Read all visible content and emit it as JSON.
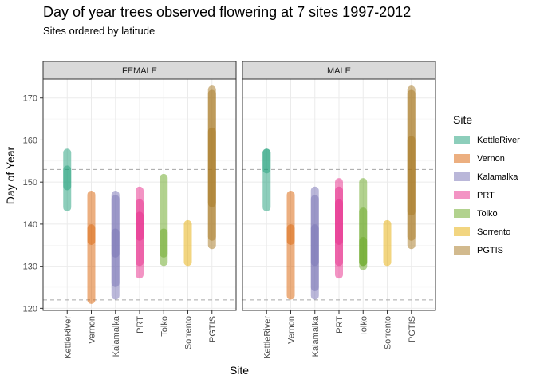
{
  "chart_data": {
    "type": "line",
    "title": "Day of year trees observed flowering at 7 sites 1997-2012",
    "subtitle": "Sites ordered by latitude",
    "xlabel": "Site",
    "ylabel": "Day of Year",
    "ylim": [
      119.5,
      174.5
    ],
    "yticks": [
      120,
      130,
      140,
      150,
      160,
      170
    ],
    "grid": true,
    "hlines": [
      122,
      153
    ],
    "facets": [
      "FEMALE",
      "MALE"
    ],
    "categories": [
      "KettleRiver",
      "Vernon",
      "Kalamalka",
      "PRT",
      "Tolko",
      "Sorrento",
      "PGTIS"
    ],
    "legend": {
      "title": "Site",
      "position": "right",
      "items": [
        {
          "label": "KettleRiver",
          "color": "#1B9E77"
        },
        {
          "label": "Vernon",
          "color": "#D95F02"
        },
        {
          "label": "Kalamalka",
          "color": "#7570B3"
        },
        {
          "label": "PRT",
          "color": "#E7298A"
        },
        {
          "label": "Tolko",
          "color": "#66A61E"
        },
        {
          "label": "Sorrento",
          "color": "#E6AB02"
        },
        {
          "label": "PGTIS",
          "color": "#A6761D"
        }
      ]
    },
    "series": [
      {
        "facet": "FEMALE",
        "site": "KettleRiver",
        "min": 144,
        "max": 157,
        "dense": [
          [
            149,
            153
          ]
        ]
      },
      {
        "facet": "FEMALE",
        "site": "Vernon",
        "min": 122,
        "max": 147,
        "dense": [
          [
            136,
            139
          ]
        ]
      },
      {
        "facet": "FEMALE",
        "site": "Kalamalka",
        "min": 123,
        "max": 147,
        "dense": [
          [
            126,
            146
          ],
          [
            133,
            138
          ]
        ]
      },
      {
        "facet": "FEMALE",
        "site": "PRT",
        "min": 128,
        "max": 148,
        "dense": [
          [
            131,
            145
          ],
          [
            137,
            142
          ]
        ]
      },
      {
        "facet": "FEMALE",
        "site": "Tolko",
        "min": 131,
        "max": 151,
        "dense": [
          [
            133,
            138
          ]
        ]
      },
      {
        "facet": "FEMALE",
        "site": "Sorrento",
        "min": 131,
        "max": 140,
        "dense": []
      },
      {
        "facet": "FEMALE",
        "site": "PGTIS",
        "min": 135,
        "max": 172,
        "dense": [
          [
            137,
            171
          ],
          [
            145,
            162
          ]
        ]
      },
      {
        "facet": "MALE",
        "site": "KettleRiver",
        "min": 144,
        "max": 157,
        "dense": [
          [
            153,
            157
          ]
        ]
      },
      {
        "facet": "MALE",
        "site": "Vernon",
        "min": 123,
        "max": 147,
        "dense": [
          [
            136,
            139
          ]
        ]
      },
      {
        "facet": "MALE",
        "site": "Kalamalka",
        "min": 123,
        "max": 148,
        "dense": [
          [
            125,
            146
          ],
          [
            131,
            139
          ]
        ]
      },
      {
        "facet": "MALE",
        "site": "PRT",
        "min": 128,
        "max": 150,
        "dense": [
          [
            131,
            148
          ],
          [
            136,
            145
          ]
        ]
      },
      {
        "facet": "MALE",
        "site": "Tolko",
        "min": 130,
        "max": 150,
        "dense": [
          [
            131,
            143
          ],
          [
            131,
            136
          ]
        ]
      },
      {
        "facet": "MALE",
        "site": "Sorrento",
        "min": 131,
        "max": 140,
        "dense": []
      },
      {
        "facet": "MALE",
        "site": "PGTIS",
        "min": 135,
        "max": 172,
        "dense": [
          [
            137,
            171
          ],
          [
            143,
            160
          ]
        ]
      }
    ]
  }
}
